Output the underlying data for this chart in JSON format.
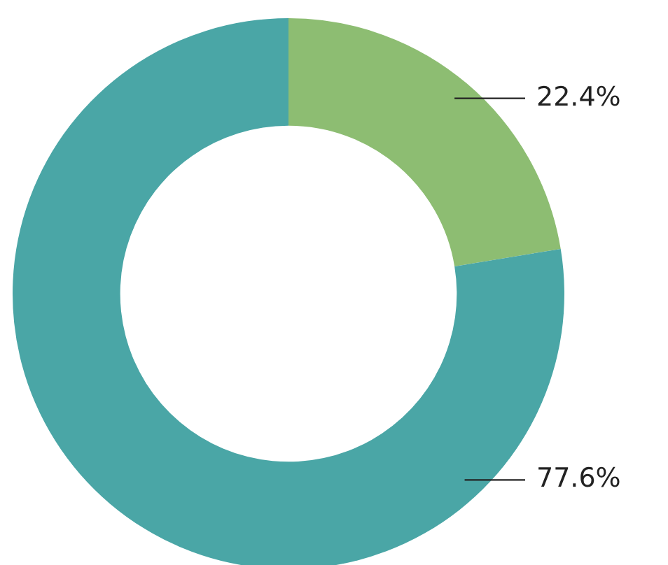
{
  "chart_data": {
    "type": "donut",
    "categories": [
      null,
      null
    ],
    "values": [
      22.4,
      77.6
    ],
    "colors": [
      "#8dbd72",
      "#4aa6a6"
    ],
    "value_labels": [
      "22.4%",
      "77.6%"
    ],
    "legend": false
  }
}
